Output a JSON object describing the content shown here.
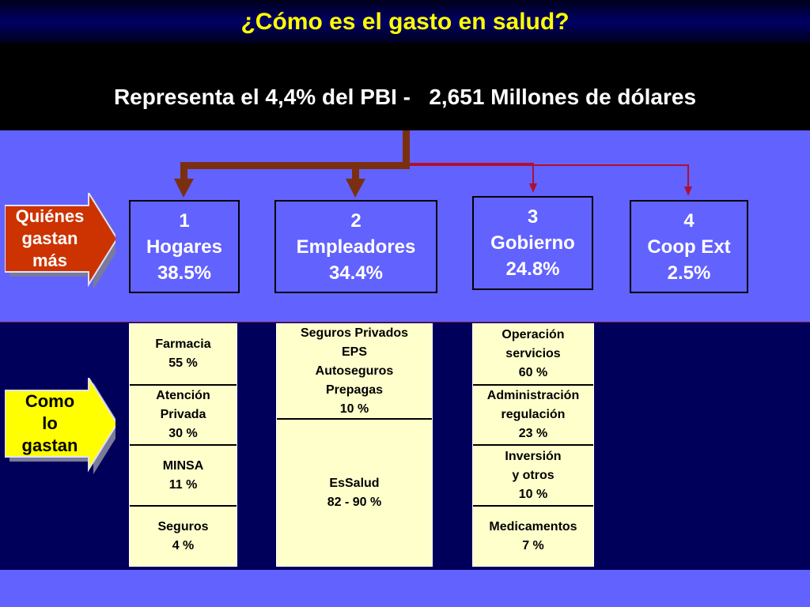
{
  "title": "¿Cómo es el gasto en salud?",
  "subtitle": "Representa el 4,4% del PBI -   2,651 Millones de dólares",
  "colors": {
    "title_text": "#ffff00",
    "band": "#6262ff",
    "dark_band": "#00005a",
    "cell_fill": "#ffffcc",
    "who_tag": "#cc3300",
    "how_tag": "#ffff00",
    "thick_connector": "#7a3010",
    "thin_connector": "#b01030"
  },
  "who_tag": {
    "lines": [
      "Quiénes",
      "gastan",
      "más"
    ]
  },
  "how_tag": {
    "lines": [
      "Como",
      "lo",
      "gastan"
    ]
  },
  "payers": [
    {
      "number": "1",
      "name": "Hogares",
      "share": "38.5%"
    },
    {
      "number": "2",
      "name": "Empleadores",
      "share": "34.4%"
    },
    {
      "number": "3",
      "name": "Gobierno",
      "share": "24.8%"
    },
    {
      "number": "4",
      "name": "Coop Ext",
      "share": "2.5%"
    }
  ],
  "breakdowns": {
    "hogares": [
      {
        "lines": [
          "Farmacia",
          "55 %"
        ]
      },
      {
        "lines": [
          "Atención",
          "Privada",
          "30 %"
        ]
      },
      {
        "lines": [
          "MINSA",
          "11 %"
        ]
      },
      {
        "lines": [
          "Seguros",
          "4 %"
        ]
      }
    ],
    "empleadores": [
      {
        "lines": [
          "Seguros Privados",
          "EPS",
          "Autoseguros",
          "Prepagas",
          "10 %"
        ]
      },
      {
        "lines": [
          "EsSalud",
          "82 - 90 %"
        ]
      }
    ],
    "gobierno": [
      {
        "lines": [
          "Operación",
          "servicios",
          "60 %"
        ]
      },
      {
        "lines": [
          "Administración",
          "regulación",
          "23 %"
        ]
      },
      {
        "lines": [
          "Inversión",
          "y otros",
          "10 %"
        ]
      },
      {
        "lines": [
          "Medicamentos",
          "7 %"
        ]
      }
    ]
  }
}
